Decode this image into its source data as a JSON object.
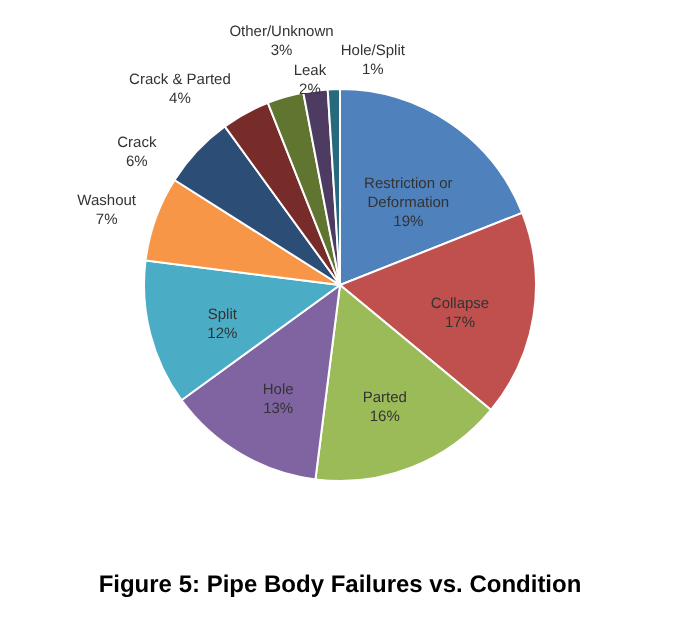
{
  "chart_data": {
    "type": "pie",
    "title": "Figure 5: Pipe Body Failures vs. Condition",
    "categories": [
      "Restriction or Deformation",
      "Collapse",
      "Parted",
      "Hole",
      "Split",
      "Washout",
      "Crack",
      "Crack & Parted",
      "Other/Unknown",
      "Leak",
      "Hole/Split"
    ],
    "values": [
      19,
      17,
      16,
      13,
      12,
      7,
      6,
      4,
      3,
      2,
      1
    ],
    "value_labels": [
      "19%",
      "17%",
      "16%",
      "13%",
      "12%",
      "7%",
      "6%",
      "4%",
      "3%",
      "2%",
      "1%"
    ],
    "colors": [
      "#4f81bd",
      "#c0504d",
      "#9bbb59",
      "#8064a2",
      "#4bacc6",
      "#f79646",
      "#2c4d75",
      "#772c2a",
      "#5f7530",
      "#4d3b62",
      "#276a7c"
    ]
  }
}
